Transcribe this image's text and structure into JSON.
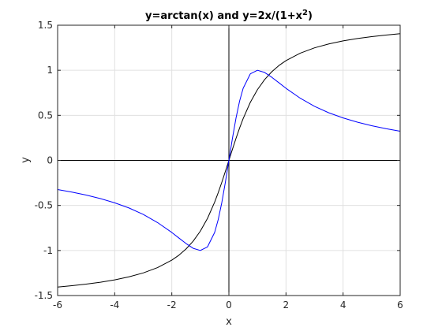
{
  "chart_data": {
    "type": "line",
    "title_parts": {
      "lead": "y=arctan(x)  and  y=2x/(1+x",
      "superscript": "2",
      "tail": ")"
    },
    "xlabel": "x",
    "ylabel": "y",
    "xlim": [
      -6,
      6
    ],
    "ylim": [
      -1.5,
      1.5
    ],
    "xticks": [
      -6,
      -4,
      -2,
      0,
      2,
      4,
      6
    ],
    "xtick_labels": [
      "-6",
      "-4",
      "-2",
      "0",
      "2",
      "4",
      "6"
    ],
    "yticks": [
      -1.5,
      -1,
      -0.5,
      0,
      0.5,
      1,
      1.5
    ],
    "ytick_labels": [
      "-1.5",
      "-1",
      "-0.5",
      "0",
      "0.5",
      "1",
      "1.5"
    ],
    "grid": true,
    "reference_lines": [
      "x=0",
      "y=0"
    ],
    "x": [
      -6,
      -5.5,
      -5,
      -4.5,
      -4,
      -3.5,
      -3,
      -2.5,
      -2,
      -1.75,
      -1.5,
      -1.25,
      -1,
      -0.75,
      -0.5,
      -0.375,
      -0.25,
      -0.125,
      0,
      0.125,
      0.25,
      0.375,
      0.5,
      0.75,
      1,
      1.25,
      1.5,
      1.75,
      2,
      2.5,
      3,
      3.5,
      4,
      4.5,
      5,
      5.5,
      6
    ],
    "series": [
      {
        "color": "#000000",
        "values": [
          -1.406,
          -1.391,
          -1.373,
          -1.352,
          -1.326,
          -1.292,
          -1.249,
          -1.19,
          -1.107,
          -1.052,
          -0.983,
          -0.896,
          -0.785,
          -0.644,
          -0.464,
          -0.359,
          -0.245,
          -0.124,
          0,
          0.124,
          0.245,
          0.359,
          0.464,
          0.644,
          0.785,
          0.896,
          0.983,
          1.052,
          1.107,
          1.19,
          1.249,
          1.292,
          1.326,
          1.352,
          1.373,
          1.391,
          1.406
        ]
      },
      {
        "color": "#0000ff",
        "values": [
          -0.324,
          -0.352,
          -0.385,
          -0.424,
          -0.471,
          -0.528,
          -0.6,
          -0.69,
          -0.8,
          -0.862,
          -0.923,
          -0.976,
          -1,
          -0.96,
          -0.8,
          -0.658,
          -0.471,
          -0.246,
          0,
          0.246,
          0.471,
          0.658,
          0.8,
          0.96,
          1,
          0.976,
          0.923,
          0.862,
          0.8,
          0.69,
          0.6,
          0.528,
          0.471,
          0.424,
          0.385,
          0.352,
          0.324
        ]
      }
    ]
  }
}
